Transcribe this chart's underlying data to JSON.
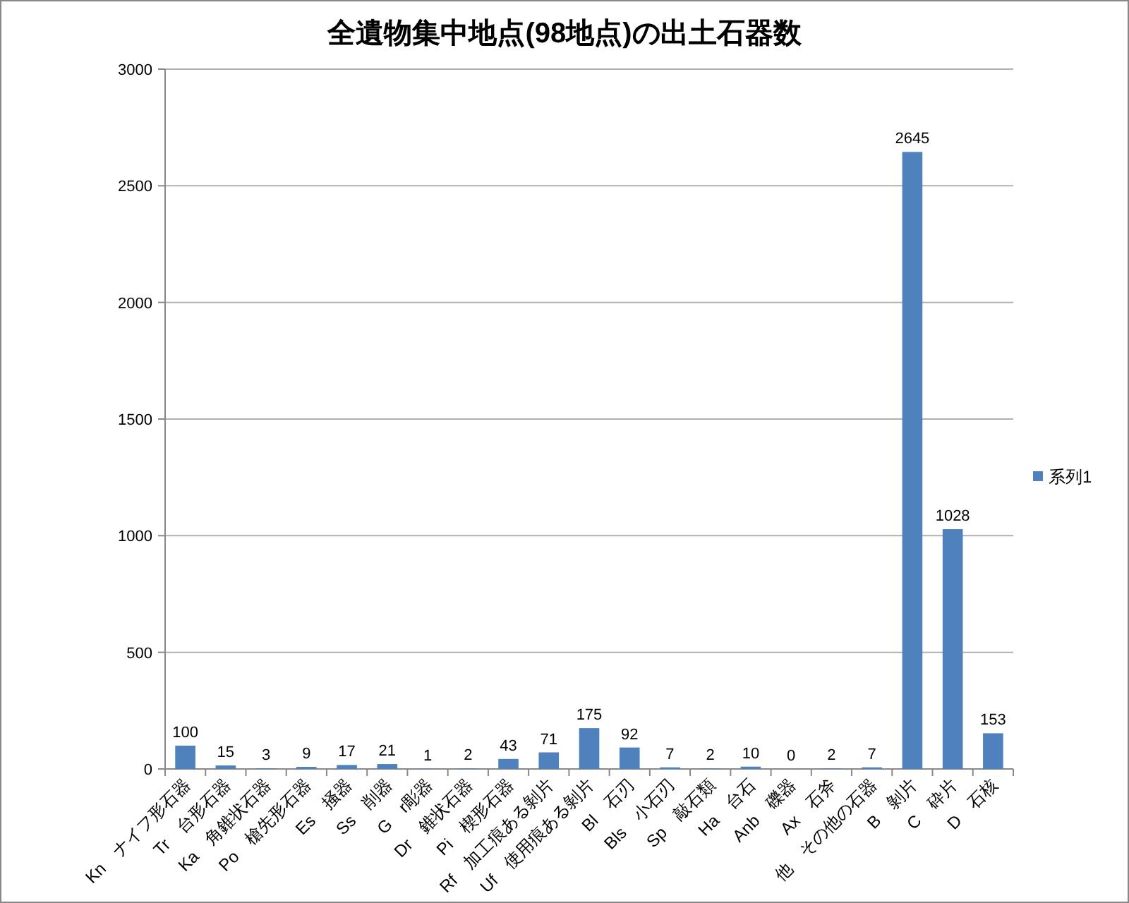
{
  "chart_data": {
    "type": "bar",
    "title": "全遺物集中地点(98地点)の出土石器数",
    "categories": [
      "Kn　ナイフ形石器",
      "Tr　台形石器",
      "Ka　角錐状石器",
      "Po　槍先形石器",
      "Es　掻器",
      "Ss　削器",
      "G　r彫器",
      "Dr　錐状石器",
      "Pi　楔形石器",
      "Rf　加工痕ある剝片",
      "Uf　使用痕ある剝片",
      "Bl　石刃",
      "Bls　小石刃",
      "Sp　敲石類",
      "Ha　台石",
      "Anb　礫器",
      "Ax　石斧",
      "他　その他の石器",
      "B　剝片",
      "C　砕片",
      "D　石核"
    ],
    "series": [
      {
        "name": "系列1",
        "color": "#4f81bd",
        "values": [
          100,
          15,
          3,
          9,
          17,
          21,
          1,
          2,
          43,
          71,
          175,
          92,
          7,
          2,
          10,
          0,
          2,
          7,
          2645,
          1028,
          153
        ]
      }
    ],
    "ylim": [
      0,
      3000
    ],
    "yticks": [
      0,
      500,
      1000,
      1500,
      2000,
      2500,
      3000
    ],
    "grid": "y",
    "legend": "right",
    "data_labels": true
  }
}
